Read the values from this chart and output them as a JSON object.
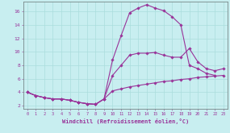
{
  "bg_color": "#c8eef0",
  "line_color": "#993399",
  "grid_color": "#aadddd",
  "line1_x": [
    0,
    1,
    2,
    3,
    4,
    5,
    6,
    7,
    8,
    9,
    10,
    11,
    12,
    13,
    14,
    15,
    16,
    17,
    18,
    19,
    20,
    21,
    22,
    23
  ],
  "line1_y": [
    4.0,
    3.5,
    3.2,
    3.0,
    3.0,
    2.8,
    2.5,
    2.3,
    2.2,
    3.0,
    8.8,
    12.4,
    15.8,
    16.5,
    17.0,
    16.5,
    16.1,
    15.2,
    14.0,
    8.0,
    7.5,
    6.8,
    6.5,
    null
  ],
  "line2_x": [
    0,
    1,
    2,
    3,
    4,
    5,
    6,
    7,
    8,
    9,
    10,
    11,
    12,
    13,
    14,
    15,
    16,
    17,
    18,
    19,
    20,
    21,
    22,
    23
  ],
  "line2_y": [
    4.0,
    3.5,
    3.2,
    3.0,
    3.0,
    2.8,
    2.5,
    2.3,
    2.2,
    3.0,
    6.5,
    8.0,
    9.5,
    9.8,
    9.8,
    9.9,
    9.5,
    9.2,
    9.2,
    10.5,
    8.5,
    7.5,
    7.2,
    7.5
  ],
  "line3_x": [
    0,
    1,
    2,
    3,
    4,
    5,
    6,
    7,
    8,
    9,
    10,
    11,
    12,
    13,
    14,
    15,
    16,
    17,
    18,
    19,
    20,
    21,
    22,
    23
  ],
  "line3_y": [
    4.0,
    3.5,
    3.2,
    3.0,
    3.0,
    2.8,
    2.5,
    2.3,
    2.2,
    3.0,
    4.2,
    4.5,
    4.8,
    5.0,
    5.2,
    5.4,
    5.6,
    5.7,
    5.9,
    6.0,
    6.2,
    6.3,
    6.4,
    6.5
  ],
  "xlabel": "Windchill (Refroidissement éolien,°C)",
  "xlim": [
    -0.5,
    23.5
  ],
  "ylim": [
    1.5,
    17.5
  ],
  "yticks": [
    2,
    4,
    6,
    8,
    10,
    12,
    14,
    16
  ],
  "xticks": [
    0,
    1,
    2,
    3,
    4,
    5,
    6,
    7,
    8,
    9,
    10,
    11,
    12,
    13,
    14,
    15,
    16,
    17,
    18,
    19,
    20,
    21,
    22,
    23
  ],
  "xtick_labels": [
    "0",
    "1",
    "2",
    "3",
    "4",
    "5",
    "6",
    "7",
    "8",
    "9",
    "10",
    "11",
    "12",
    "13",
    "14",
    "15",
    "16",
    "17",
    "18",
    "19",
    "20",
    "21",
    "22",
    "23"
  ]
}
